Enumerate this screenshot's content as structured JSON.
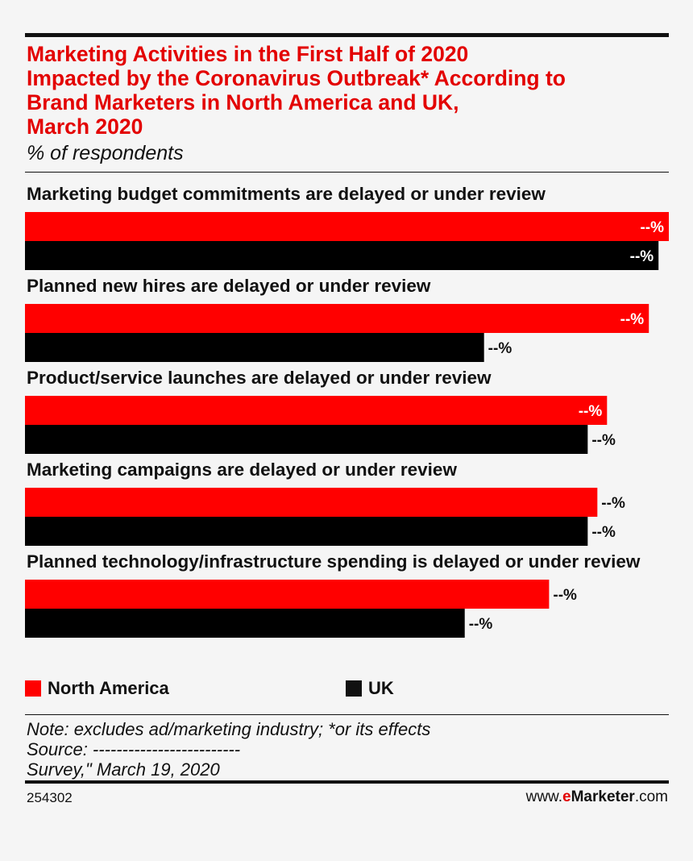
{
  "header": {
    "title_lines": [
      "Marketing Activities in the First Half of 2020",
      "Impacted by the Coronavirus Outbreak* According to",
      "Brand Marketers in North America and UK,",
      "March 2020"
    ],
    "subtitle": "% of respondents"
  },
  "chart_data": {
    "type": "bar",
    "orientation": "horizontal",
    "categories": [
      "Marketing budget commitments are delayed or under review",
      "Planned new hires are delayed or under review",
      "Product/service launches are delayed or under review",
      "Marketing campaigns are delayed or under review",
      "Planned technology/infrastructure spending is delayed or under review"
    ],
    "series": [
      {
        "name": "North America",
        "color": "#ff0000",
        "values": [
          100,
          96.9,
          90.4,
          88.9,
          81.4
        ],
        "labels": [
          "--%",
          "--%",
          "--%",
          "--%",
          "--%"
        ]
      },
      {
        "name": "UK",
        "color": "#000000",
        "values": [
          98.4,
          71.3,
          87.4,
          87.4,
          68.3
        ],
        "labels": [
          "--%",
          "--%",
          "--%",
          "--%",
          "--%"
        ]
      }
    ],
    "xlim": [
      0,
      100
    ],
    "legend": "bottom",
    "grid": false
  },
  "legend": {
    "north_america": "North America",
    "uk": "UK"
  },
  "notes": {
    "line1": "Note: excludes ad/marketing industry; *or its effects",
    "line2": "Source: -------------------------",
    "line3": "Survey,\" March 19, 2020"
  },
  "footer": {
    "chart_id": "254302",
    "brand_prefix": "www.",
    "brand_e": "e",
    "brand_marketer": "Marketer",
    "brand_suffix": ".com"
  }
}
